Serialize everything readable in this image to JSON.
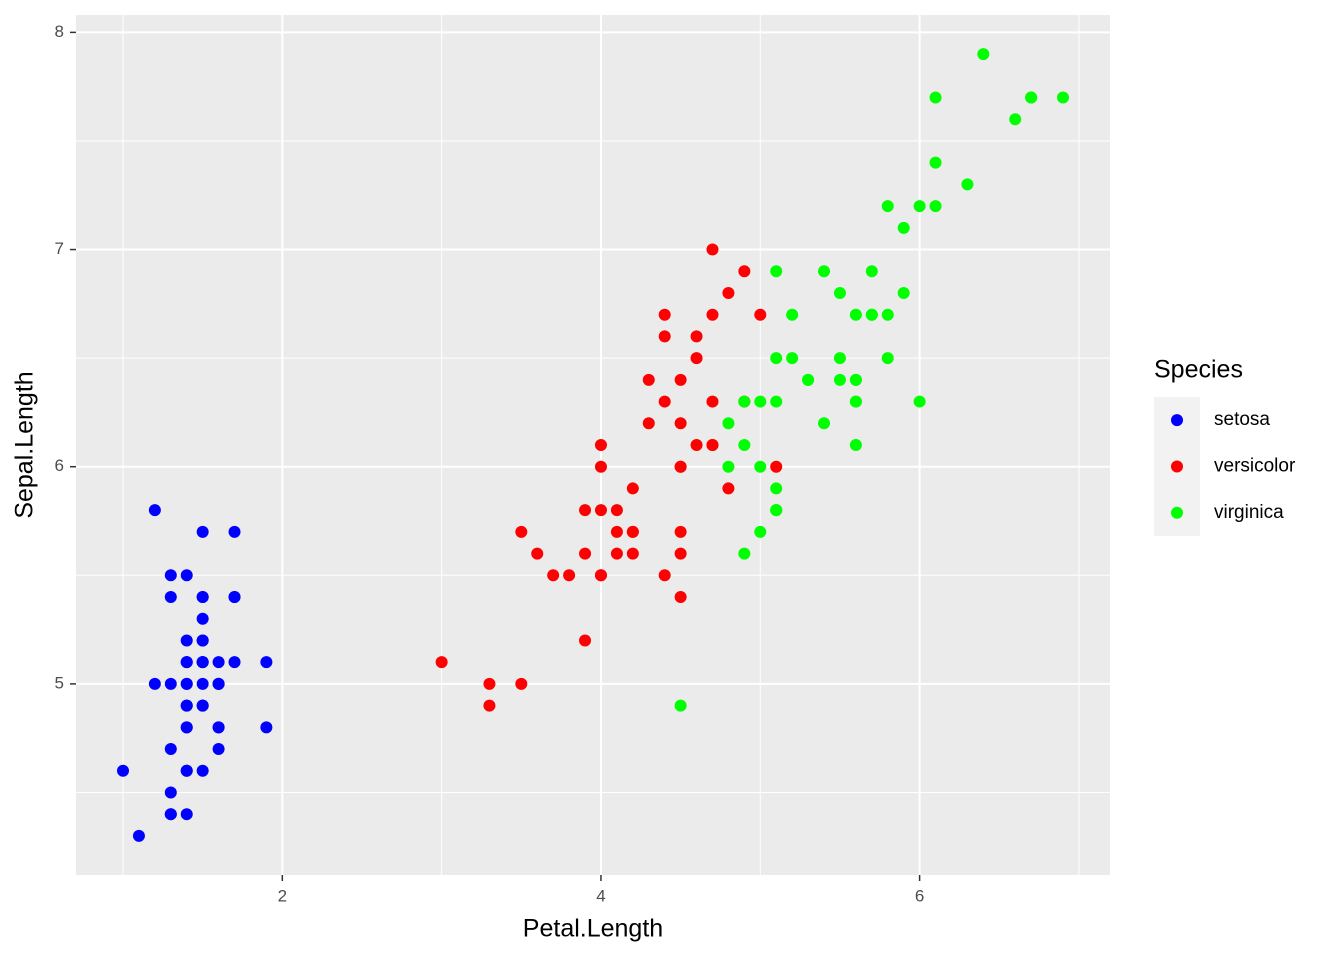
{
  "chart_data": {
    "type": "scatter",
    "x_label": "Petal.Length",
    "y_label": "Sepal.Length",
    "legend_title": "Species",
    "xlim": [
      0.705,
      7.195
    ],
    "xticks": [
      2,
      4,
      6
    ],
    "ylim": [
      4.12,
      8.08
    ],
    "yticks": [
      5,
      6,
      7,
      8
    ],
    "grid": true,
    "legend_position": "right",
    "series": [
      {
        "name": "setosa",
        "color": "#0000ff",
        "x": [
          1.4,
          1.4,
          1.3,
          1.5,
          1.4,
          1.7,
          1.4,
          1.5,
          1.4,
          1.5,
          1.5,
          1.6,
          1.4,
          1.1,
          1.2,
          1.5,
          1.3,
          1.4,
          1.7,
          1.5,
          1.7,
          1.5,
          1.0,
          1.7,
          1.9,
          1.6,
          1.6,
          1.5,
          1.4,
          1.6,
          1.6,
          1.5,
          1.5,
          1.4,
          1.5,
          1.2,
          1.3,
          1.4,
          1.3,
          1.5,
          1.3,
          1.3,
          1.3,
          1.6,
          1.9,
          1.4,
          1.6,
          1.4,
          1.5,
          1.4
        ],
        "values": [
          5.1,
          4.9,
          4.7,
          4.6,
          5.0,
          5.4,
          4.6,
          5.0,
          4.4,
          4.9,
          5.4,
          4.8,
          4.8,
          4.3,
          5.8,
          5.7,
          5.4,
          5.1,
          5.7,
          5.1,
          5.4,
          5.1,
          4.6,
          5.1,
          4.8,
          5.0,
          5.0,
          5.2,
          5.2,
          4.7,
          4.8,
          5.4,
          5.2,
          5.5,
          4.9,
          5.0,
          5.5,
          4.9,
          4.4,
          5.1,
          5.0,
          4.5,
          4.4,
          5.0,
          5.1,
          4.8,
          5.1,
          4.6,
          5.3,
          5.0
        ]
      },
      {
        "name": "versicolor",
        "color": "#ff0000",
        "x": [
          4.7,
          4.5,
          4.9,
          4.0,
          4.6,
          4.5,
          4.7,
          3.3,
          4.6,
          3.9,
          3.5,
          4.2,
          4.0,
          4.7,
          3.6,
          4.4,
          4.5,
          4.1,
          4.5,
          3.9,
          4.8,
          4.0,
          4.9,
          4.7,
          4.3,
          4.4,
          4.8,
          5.0,
          4.5,
          3.5,
          3.8,
          3.7,
          3.9,
          5.1,
          4.5,
          4.5,
          4.7,
          4.4,
          4.1,
          4.0,
          4.4,
          4.6,
          4.0,
          3.3,
          4.2,
          4.2,
          4.2,
          4.3,
          3.0,
          4.1
        ],
        "values": [
          7.0,
          6.4,
          6.9,
          5.5,
          6.5,
          5.7,
          6.3,
          4.9,
          6.6,
          5.2,
          5.0,
          5.9,
          6.0,
          6.1,
          5.6,
          6.7,
          5.6,
          5.8,
          6.2,
          5.6,
          5.9,
          6.1,
          6.3,
          6.1,
          6.4,
          6.6,
          6.8,
          6.7,
          6.0,
          5.7,
          5.5,
          5.5,
          5.8,
          6.0,
          5.4,
          6.0,
          6.7,
          6.3,
          5.6,
          5.5,
          5.5,
          6.1,
          5.8,
          5.0,
          5.6,
          5.7,
          5.7,
          6.2,
          5.1,
          5.7
        ]
      },
      {
        "name": "virginica",
        "color": "#00ff00",
        "x": [
          6.0,
          5.1,
          5.9,
          5.6,
          5.8,
          6.6,
          4.5,
          6.3,
          5.8,
          6.1,
          5.1,
          5.3,
          5.5,
          5.0,
          5.1,
          5.3,
          5.5,
          6.7,
          6.9,
          5.0,
          5.7,
          4.9,
          6.7,
          4.9,
          5.7,
          6.0,
          4.8,
          4.9,
          5.6,
          5.8,
          6.1,
          6.4,
          5.6,
          5.1,
          5.6,
          6.1,
          5.6,
          5.5,
          4.8,
          5.4,
          5.6,
          5.1,
          5.1,
          5.9,
          5.7,
          5.2,
          5.0,
          5.2,
          5.4,
          5.1
        ],
        "values": [
          6.3,
          5.8,
          7.1,
          6.3,
          6.5,
          7.6,
          4.9,
          7.3,
          6.7,
          7.2,
          6.5,
          6.4,
          6.8,
          5.7,
          5.8,
          6.4,
          6.5,
          7.7,
          7.7,
          6.0,
          6.9,
          5.6,
          7.7,
          6.3,
          6.7,
          7.2,
          6.2,
          6.1,
          6.4,
          7.2,
          7.4,
          7.9,
          6.4,
          6.3,
          6.1,
          7.7,
          6.3,
          6.4,
          6.0,
          6.9,
          6.7,
          6.9,
          5.8,
          6.8,
          6.7,
          6.7,
          6.3,
          6.5,
          6.2,
          5.9
        ]
      }
    ]
  }
}
